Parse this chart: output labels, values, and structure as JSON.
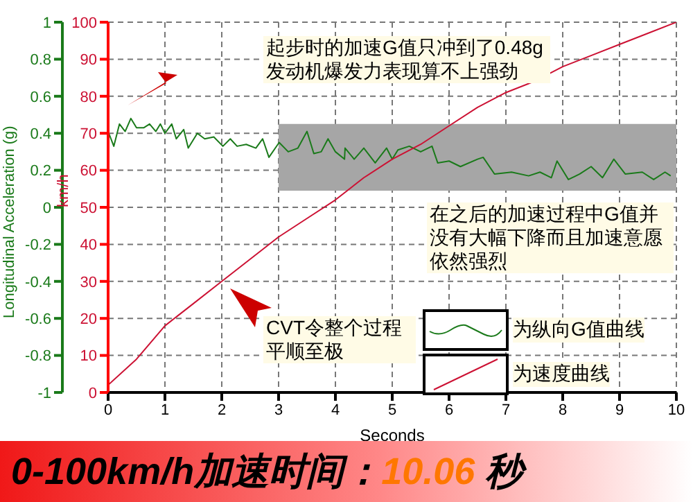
{
  "chart_data": {
    "type": "line",
    "title": "0-100km/h加速时间：10.06 秒",
    "xlabel": "Seconds",
    "ylabel": "km/h",
    "y2label": "Longitudinal Acceleration (g)",
    "xlim": [
      0,
      10
    ],
    "xticks": [
      0,
      1,
      2,
      3,
      4,
      5,
      6,
      7,
      8,
      9,
      10
    ],
    "ylim": [
      0,
      100
    ],
    "yticks": [
      0,
      10,
      20,
      30,
      40,
      50,
      60,
      70,
      80,
      90,
      100
    ],
    "y2lim": [
      -1,
      1
    ],
    "y2ticks": [
      -1,
      -0.8,
      -0.6,
      -0.4,
      -0.2,
      0,
      0.2,
      0.4,
      0.6,
      0.8,
      1
    ],
    "grid": true,
    "legend": "bottom right",
    "series": [
      {
        "name": "为纵向G值曲线",
        "color": "#1a7a1a",
        "axis": "y2",
        "x": [
          0,
          0.1,
          0.2,
          0.3,
          0.4,
          0.5,
          0.63,
          0.73,
          0.84,
          0.92,
          1.0,
          1.12,
          1.2,
          1.33,
          1.41,
          1.57,
          1.7,
          1.86,
          2.02,
          2.15,
          2.27,
          2.43,
          2.6,
          2.72,
          2.83,
          3.01,
          3.17,
          3.34,
          3.5,
          3.62,
          3.75,
          3.87,
          4.0,
          4.16,
          4.17,
          4.33,
          4.5,
          4.7,
          4.9,
          5.0,
          5.1,
          5.3,
          5.5,
          5.7,
          5.8,
          6.0,
          6.2,
          6.5,
          6.6,
          6.8,
          7.1,
          7.4,
          7.6,
          7.8,
          7.9,
          8.1,
          8.3,
          8.5,
          8.7,
          8.9,
          9.1,
          9.4,
          9.6,
          9.8,
          9.9
        ],
        "values": [
          0.41,
          0.33,
          0.45,
          0.41,
          0.48,
          0.43,
          0.43,
          0.45,
          0.41,
          0.45,
          0.4,
          0.45,
          0.37,
          0.42,
          0.32,
          0.4,
          0.37,
          0.38,
          0.33,
          0.37,
          0.33,
          0.34,
          0.32,
          0.37,
          0.27,
          0.35,
          0.3,
          0.32,
          0.41,
          0.29,
          0.3,
          0.37,
          0.3,
          0.26,
          0.32,
          0.26,
          0.32,
          0.24,
          0.32,
          0.26,
          0.31,
          0.33,
          0.3,
          0.33,
          0.24,
          0.25,
          0.22,
          0.26,
          0.27,
          0.18,
          0.19,
          0.17,
          0.19,
          0.16,
          0.25,
          0.15,
          0.18,
          0.22,
          0.16,
          0.26,
          0.18,
          0.19,
          0.15,
          0.19,
          0.17
        ]
      },
      {
        "name": "为速度曲线",
        "color": "#cc1133",
        "x": [
          0,
          0.5,
          1,
          1.5,
          2,
          2.5,
          3,
          3.5,
          4,
          4.5,
          5,
          5.5,
          6,
          6.5,
          7,
          7.5,
          8,
          8.5,
          9,
          9.5,
          10
        ],
        "values": [
          2,
          9,
          18,
          24,
          30,
          36,
          42,
          47,
          52,
          58,
          63,
          67,
          72,
          77,
          81,
          84,
          88,
          91,
          94,
          97,
          100
        ]
      }
    ],
    "bands": [
      {
        "axis": "y2",
        "from": 0.09,
        "to": 0.45,
        "color": "#a6a6a6"
      }
    ],
    "annotations": [
      "起步时的加速G值只冲到了0.48g发动机爆发力表现算不上强劲",
      "在之后的加速过程中G值并没有大幅下降而且加速意愿依然强烈",
      "CVT令整个过程平顺至极"
    ]
  }
}
